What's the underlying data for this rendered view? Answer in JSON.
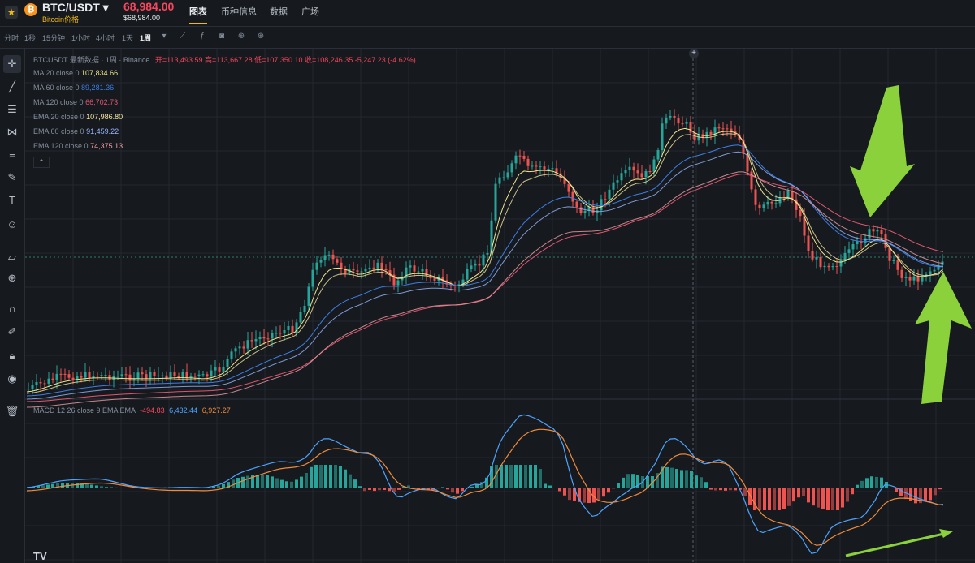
{
  "header": {
    "symbol": "BTC/USDT",
    "symbol_sub": "Bitcoin价格",
    "price": "68,984.00",
    "price_sub": "$68,984.00",
    "tabs": [
      "图表",
      "币种信息",
      "数据",
      "广场"
    ]
  },
  "timeframes": [
    "分时",
    "1秒",
    "15分钟",
    "1小时",
    "4小时",
    "1天",
    "1周"
  ],
  "left_tools": [
    "crosshair-icon",
    "trendline-icon",
    "hlines-icon",
    "pattern-icon",
    "fib-icon",
    "brush-icon",
    "text-icon",
    "emoji-icon",
    "ruler-icon",
    "zoom-icon",
    "magnet-icon",
    "lock-pencil-icon",
    "lock-icon",
    "eye-icon",
    "trash-icon"
  ],
  "legend": {
    "title": "BTCUSDT 最新数据 · 1周 · Binance",
    "ohlc": "开=113,493.59 高=113,667.28 低=107,350.10 收=108,246.35 -5,247.23 (-4.62%)",
    "mas": [
      {
        "label": "MA 20 close 0",
        "value": "107,834.66",
        "color": "#f0e68c"
      },
      {
        "label": "MA 60 close 0",
        "value": "89,281.36",
        "color": "#3c7ee6"
      },
      {
        "label": "MA 120 close 0",
        "value": "66,702.73",
        "color": "#e0556f"
      },
      {
        "label": "EMA 20 close 0",
        "value": "107,986.80",
        "color": "#f5e6a0"
      },
      {
        "label": "EMA 60 close 0",
        "value": "91,459.22",
        "color": "#9ab8ff"
      },
      {
        "label": "EMA 120 close 0",
        "value": "74,375.13",
        "color": "#f6a0a8"
      }
    ],
    "macd_label": "MACD 12 26 close 9 EMA EMA",
    "macd_values": [
      "-494.83",
      "6,432.44",
      "6,927.27"
    ]
  },
  "colors": {
    "up": "#26a69a",
    "down": "#ef5350",
    "accent": "#f0b90b",
    "arrow": "#8bd13c"
  }
}
